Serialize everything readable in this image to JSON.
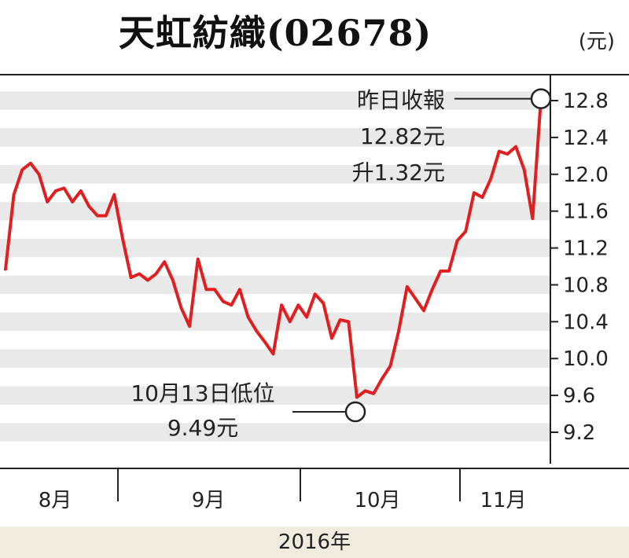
{
  "chart_data": {
    "type": "line",
    "title": "天虹紡織(02678)",
    "unit_label": "(元)",
    "year_label": "2016年",
    "ylim": [
      9.0,
      13.2
    ],
    "y_ticks": [
      "12.8",
      "12.4",
      "12.0",
      "11.6",
      "11.2",
      "10.8",
      "10.4",
      "10.0",
      "9.6",
      "9.2"
    ],
    "grid": true,
    "months": [
      "8月",
      "9月",
      "10月",
      "11月"
    ],
    "series": [
      {
        "color": "#e02020",
        "values": [
          10.97,
          11.78,
          12.05,
          12.12,
          12.0,
          11.7,
          11.82,
          11.85,
          11.7,
          11.82,
          11.65,
          11.55,
          11.55,
          11.78,
          11.3,
          10.88,
          10.92,
          10.85,
          10.92,
          11.05,
          10.85,
          10.55,
          10.35,
          11.08,
          10.75,
          10.75,
          10.62,
          10.58,
          10.75,
          10.45,
          10.3,
          10.18,
          10.05,
          10.58,
          10.4,
          10.58,
          10.45,
          10.7,
          10.6,
          10.22,
          10.42,
          10.4,
          9.58,
          9.65,
          9.62,
          9.78,
          9.92,
          10.3,
          10.78,
          10.65,
          10.52,
          10.75,
          10.95,
          10.95,
          11.28,
          11.38,
          11.8,
          11.75,
          11.95,
          12.25,
          12.22,
          12.3,
          12.05,
          11.52,
          12.82
        ]
      }
    ],
    "annotations": [
      {
        "point": "high",
        "lines": [
          "昨日收報",
          "12.82元",
          "升1.32元"
        ]
      },
      {
        "point": "low",
        "lines": [
          "10月13日低位",
          "9.49元"
        ]
      }
    ]
  }
}
